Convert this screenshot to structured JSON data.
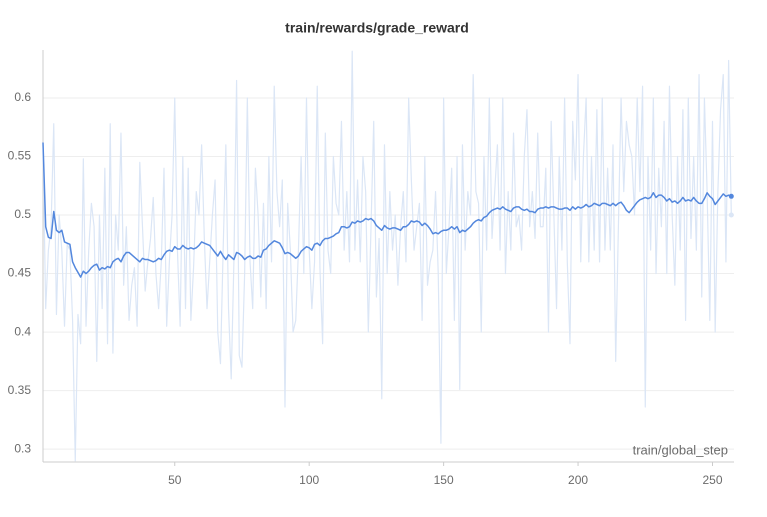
{
  "chart_data": {
    "type": "line",
    "title": "train/rewards/grade_reward",
    "x_label": "train/global_step",
    "x": [
      1,
      2,
      3,
      4,
      5,
      6,
      7,
      8,
      9,
      10,
      11,
      12,
      13,
      14,
      15,
      16,
      17,
      18,
      19,
      20,
      21,
      22,
      23,
      24,
      25,
      26,
      27,
      28,
      29,
      30,
      31,
      32,
      33,
      34,
      35,
      36,
      37,
      38,
      39,
      40,
      41,
      42,
      43,
      44,
      45,
      46,
      47,
      48,
      49,
      50,
      51,
      52,
      53,
      54,
      55,
      56,
      57,
      58,
      59,
      60,
      61,
      62,
      63,
      64,
      65,
      66,
      67,
      68,
      69,
      70,
      71,
      72,
      73,
      74,
      75,
      76,
      77,
      78,
      79,
      80,
      81,
      82,
      83,
      84,
      85,
      86,
      87,
      88,
      89,
      90,
      91,
      92,
      93,
      94,
      95,
      96,
      97,
      98,
      99,
      100,
      101,
      102,
      103,
      104,
      105,
      106,
      107,
      108,
      109,
      110,
      111,
      112,
      113,
      114,
      115,
      116,
      117,
      118,
      119,
      120,
      121,
      122,
      123,
      124,
      125,
      126,
      127,
      128,
      129,
      130,
      131,
      132,
      133,
      134,
      135,
      136,
      137,
      138,
      139,
      140,
      141,
      142,
      143,
      144,
      145,
      146,
      147,
      148,
      149,
      150,
      151,
      152,
      153,
      154,
      155,
      156,
      157,
      158,
      159,
      160,
      161,
      162,
      163,
      164,
      165,
      166,
      167,
      168,
      169,
      170,
      171,
      172,
      173,
      174,
      175,
      176,
      177,
      178,
      179,
      180,
      181,
      182,
      183,
      184,
      185,
      186,
      187,
      188,
      189,
      190,
      191,
      192,
      193,
      194,
      195,
      196,
      197,
      198,
      199,
      200,
      201,
      202,
      203,
      204,
      205,
      206,
      207,
      208,
      209,
      210,
      211,
      212,
      213,
      214,
      215,
      216,
      217,
      218,
      219,
      220,
      221,
      222,
      223,
      224,
      225,
      226,
      227,
      228,
      229,
      230,
      231,
      232,
      233,
      234,
      235,
      236,
      237,
      238,
      239,
      240,
      241,
      242,
      243,
      244,
      245,
      246,
      247,
      248,
      249,
      250,
      251,
      252,
      253,
      254,
      255,
      256,
      257
    ],
    "series": [
      {
        "color": "#dbe6f6",
        "values": [
          0.56,
          0.42,
          0.47,
          0.49,
          0.578,
          0.415,
          0.5,
          0.47,
          0.405,
          0.475,
          0.47,
          0.41,
          0.29,
          0.415,
          0.39,
          0.548,
          0.405,
          0.47,
          0.51,
          0.49,
          0.375,
          0.5,
          0.42,
          0.54,
          0.39,
          0.578,
          0.382,
          0.5,
          0.47,
          0.57,
          0.44,
          0.49,
          0.41,
          0.44,
          0.455,
          0.405,
          0.545,
          0.49,
          0.435,
          0.46,
          0.48,
          0.515,
          0.45,
          0.42,
          0.46,
          0.54,
          0.405,
          0.46,
          0.5,
          0.6,
          0.47,
          0.405,
          0.55,
          0.42,
          0.54,
          0.41,
          0.455,
          0.52,
          0.5,
          0.56,
          0.48,
          0.42,
          0.46,
          0.5,
          0.53,
          0.4,
          0.373,
          0.47,
          0.56,
          0.42,
          0.36,
          0.46,
          0.615,
          0.38,
          0.37,
          0.45,
          0.6,
          0.46,
          0.42,
          0.54,
          0.5,
          0.43,
          0.51,
          0.42,
          0.55,
          0.46,
          0.61,
          0.52,
          0.49,
          0.53,
          0.336,
          0.51,
          0.47,
          0.4,
          0.41,
          0.47,
          0.55,
          0.45,
          0.6,
          0.47,
          0.42,
          0.46,
          0.61,
          0.455,
          0.39,
          0.57,
          0.47,
          0.45,
          0.55,
          0.51,
          0.5,
          0.58,
          0.47,
          0.52,
          0.46,
          0.64,
          0.47,
          0.53,
          0.46,
          0.55,
          0.52,
          0.4,
          0.49,
          0.58,
          0.43,
          0.48,
          0.343,
          0.56,
          0.45,
          0.52,
          0.47,
          0.5,
          0.44,
          0.49,
          0.52,
          0.46,
          0.6,
          0.53,
          0.47,
          0.49,
          0.51,
          0.41,
          0.55,
          0.44,
          0.46,
          0.47,
          0.52,
          0.45,
          0.305,
          0.6,
          0.45,
          0.49,
          0.54,
          0.41,
          0.55,
          0.351,
          0.56,
          0.47,
          0.52,
          0.5,
          0.62,
          0.52,
          0.51,
          0.4,
          0.55,
          0.47,
          0.6,
          0.48,
          0.52,
          0.56,
          0.47,
          0.6,
          0.45,
          0.52,
          0.47,
          0.57,
          0.49,
          0.5,
          0.47,
          0.55,
          0.59,
          0.49,
          0.52,
          0.48,
          0.57,
          0.49,
          0.49,
          0.54,
          0.4,
          0.58,
          0.5,
          0.42,
          0.55,
          0.47,
          0.6,
          0.46,
          0.39,
          0.58,
          0.53,
          0.62,
          0.46,
          0.55,
          0.6,
          0.46,
          0.55,
          0.47,
          0.59,
          0.46,
          0.6,
          0.47,
          0.54,
          0.47,
          0.56,
          0.375,
          0.49,
          0.6,
          0.52,
          0.58,
          0.56,
          0.55,
          0.5,
          0.6,
          0.52,
          0.61,
          0.336,
          0.55,
          0.47,
          0.6,
          0.45,
          0.54,
          0.49,
          0.58,
          0.45,
          0.61,
          0.5,
          0.44,
          0.55,
          0.47,
          0.59,
          0.41,
          0.6,
          0.48,
          0.55,
          0.47,
          0.62,
          0.43,
          0.6,
          0.52,
          0.41,
          0.58,
          0.4,
          0.52,
          0.59,
          0.62,
          0.46,
          0.632,
          0.5
        ]
      },
      {
        "color": "#5387dd",
        "values": [
          0.562,
          0.49,
          0.481,
          0.48,
          0.503,
          0.487,
          0.485,
          0.487,
          0.477,
          0.476,
          0.475,
          0.46,
          0.455,
          0.451,
          0.447,
          0.452,
          0.45,
          0.452,
          0.455,
          0.457,
          0.458,
          0.453,
          0.455,
          0.454,
          0.456,
          0.455,
          0.46,
          0.462,
          0.463,
          0.46,
          0.465,
          0.468,
          0.468,
          0.466,
          0.464,
          0.462,
          0.46,
          0.463,
          0.462,
          0.462,
          0.461,
          0.46,
          0.461,
          0.463,
          0.462,
          0.466,
          0.469,
          0.47,
          0.469,
          0.473,
          0.471,
          0.471,
          0.474,
          0.472,
          0.471,
          0.472,
          0.471,
          0.472,
          0.474,
          0.477,
          0.476,
          0.475,
          0.474,
          0.471,
          0.468,
          0.465,
          0.469,
          0.465,
          0.462,
          0.466,
          0.464,
          0.462,
          0.468,
          0.467,
          0.465,
          0.462,
          0.464,
          0.465,
          0.463,
          0.463,
          0.465,
          0.464,
          0.47,
          0.471,
          0.474,
          0.476,
          0.478,
          0.477,
          0.476,
          0.472,
          0.467,
          0.468,
          0.467,
          0.465,
          0.463,
          0.465,
          0.469,
          0.471,
          0.473,
          0.472,
          0.47,
          0.475,
          0.476,
          0.474,
          0.478,
          0.48,
          0.48,
          0.481,
          0.482,
          0.484,
          0.485,
          0.49,
          0.49,
          0.489,
          0.49,
          0.494,
          0.493,
          0.495,
          0.494,
          0.495,
          0.497,
          0.496,
          0.497,
          0.495,
          0.491,
          0.489,
          0.487,
          0.491,
          0.489,
          0.488,
          0.489,
          0.489,
          0.488,
          0.487,
          0.49,
          0.49,
          0.492,
          0.495,
          0.494,
          0.495,
          0.494,
          0.491,
          0.493,
          0.491,
          0.488,
          0.484,
          0.485,
          0.484,
          0.486,
          0.487,
          0.487,
          0.488,
          0.49,
          0.488,
          0.49,
          0.485,
          0.487,
          0.486,
          0.488,
          0.49,
          0.493,
          0.495,
          0.496,
          0.495,
          0.498,
          0.499,
          0.502,
          0.504,
          0.505,
          0.506,
          0.505,
          0.507,
          0.505,
          0.504,
          0.503,
          0.506,
          0.507,
          0.507,
          0.505,
          0.504,
          0.505,
          0.503,
          0.503,
          0.502,
          0.505,
          0.506,
          0.506,
          0.507,
          0.506,
          0.507,
          0.507,
          0.506,
          0.505,
          0.505,
          0.506,
          0.506,
          0.504,
          0.507,
          0.505,
          0.507,
          0.506,
          0.507,
          0.509,
          0.507,
          0.508,
          0.51,
          0.509,
          0.508,
          0.51,
          0.51,
          0.509,
          0.508,
          0.51,
          0.508,
          0.51,
          0.511,
          0.508,
          0.504,
          0.502,
          0.505,
          0.508,
          0.511,
          0.513,
          0.514,
          0.515,
          0.514,
          0.515,
          0.519,
          0.515,
          0.517,
          0.517,
          0.515,
          0.512,
          0.514,
          0.511,
          0.512,
          0.51,
          0.512,
          0.515,
          0.512,
          0.513,
          0.512,
          0.515,
          0.512,
          0.51,
          0.51,
          0.514,
          0.519,
          0.516,
          0.514,
          0.509,
          0.512,
          0.515,
          0.518,
          0.516,
          0.517,
          0.516
        ]
      }
    ],
    "xlim": [
      1,
      258
    ],
    "xticks": [
      50,
      100,
      150,
      200,
      250
    ],
    "ylim": [
      0.289,
      0.641
    ],
    "yticks": [
      0.3,
      0.35,
      0.4,
      0.45,
      0.5,
      0.55,
      0.6
    ],
    "grid": true
  }
}
